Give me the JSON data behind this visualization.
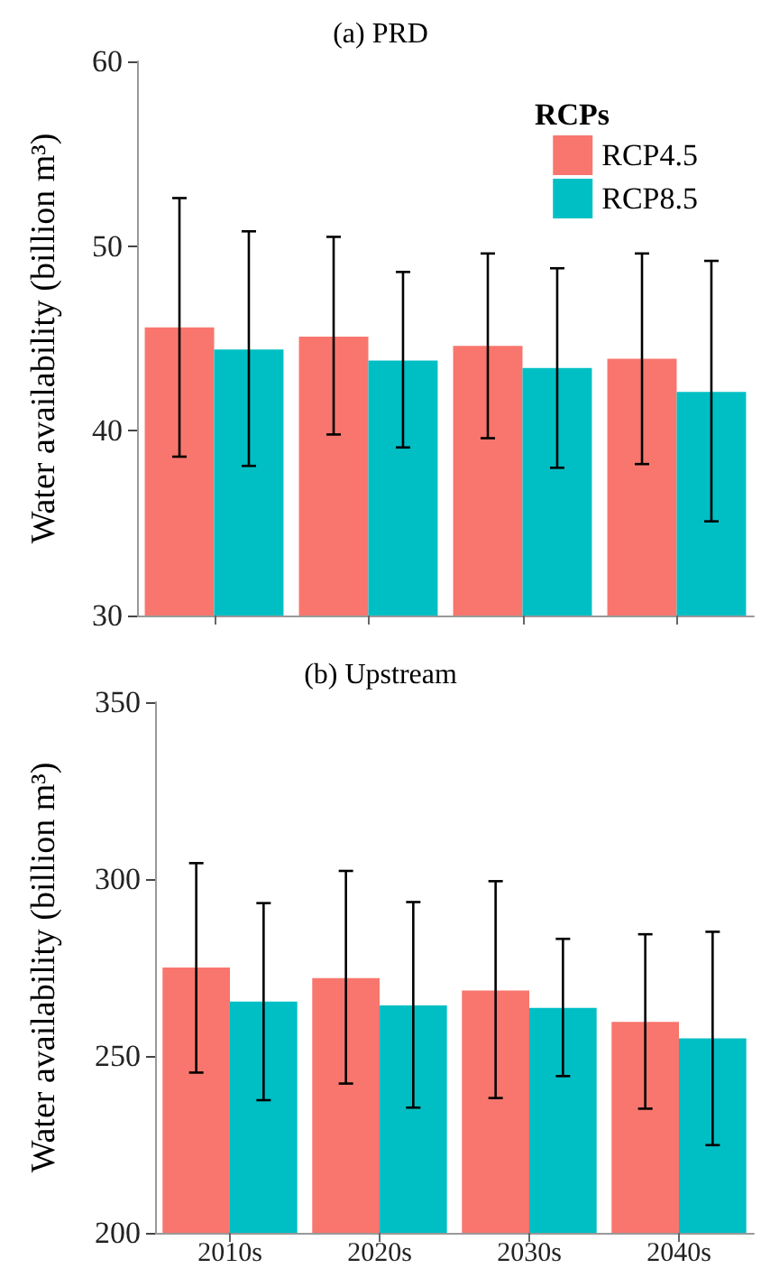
{
  "chart_data": [
    {
      "type": "bar",
      "title": "(a) PRD",
      "ylabel": "Water availability (billion m³)",
      "legend_title": "RCPs",
      "legend": "top right",
      "grid": false,
      "tick_labels": "y",
      "categories": [
        null,
        null,
        null,
        null
      ],
      "ylim": [
        30,
        60
      ],
      "yticks": [
        30,
        40,
        50,
        60
      ],
      "series": [
        {
          "name": "RCP4.5",
          "color": "#f8766d",
          "values": [
            45.6,
            45.1,
            44.6,
            43.9
          ],
          "errors": [
            [
              38.6,
              52.6
            ],
            [
              39.8,
              50.5
            ],
            [
              39.6,
              49.6
            ],
            [
              38.2,
              49.6
            ]
          ]
        },
        {
          "name": "RCP8.5",
          "color": "#00bfc4",
          "values": [
            44.4,
            43.8,
            43.4,
            42.1
          ],
          "errors": [
            [
              38.1,
              50.8
            ],
            [
              39.1,
              48.6
            ],
            [
              38.0,
              48.8
            ],
            [
              35.1,
              49.2
            ]
          ]
        }
      ]
    },
    {
      "type": "bar",
      "title": "(b) Upstream",
      "ylabel": "Water availability (billion m³)",
      "legend": false,
      "grid": false,
      "categories": [
        "2010s",
        "2020s",
        "2030s",
        "2040s"
      ],
      "ylim": [
        200,
        350
      ],
      "yticks": [
        200,
        250,
        300,
        350
      ],
      "series": [
        {
          "color": "#f8766d",
          "values": [
            275,
            272,
            268.5,
            259.6
          ],
          "errors": [
            [
              245.3,
              304.5
            ],
            [
              242.2,
              302.3
            ],
            [
              238.1,
              299.4
            ],
            [
              235.1,
              284.4
            ]
          ]
        },
        {
          "color": "#00bfc4",
          "values": [
            265.4,
            264.3,
            263.6,
            255
          ],
          "errors": [
            [
              237.5,
              293.2
            ],
            [
              235.4,
              293.5
            ],
            [
              244.3,
              283.1
            ],
            [
              224.8,
              285.1
            ]
          ]
        }
      ]
    }
  ]
}
